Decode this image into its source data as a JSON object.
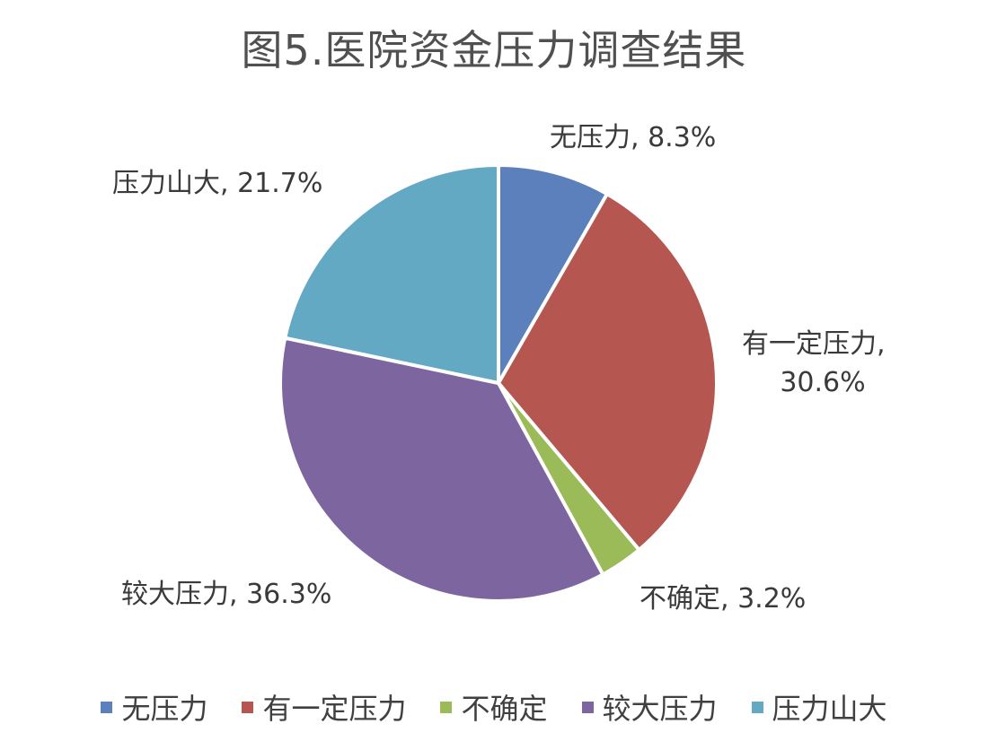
{
  "chart_data": {
    "type": "pie",
    "title": "图5.医院资金压力调查结果",
    "slices": [
      {
        "name": "无压力",
        "value": 8.3,
        "label": "无压力, 8.3%",
        "color": "#5B80BB"
      },
      {
        "name": "有一定压力",
        "value": 30.6,
        "label": "有一定压力, 30.6%",
        "color": "#B55650"
      },
      {
        "name": "不确定",
        "value": 3.2,
        "label": "不确定, 3.2%",
        "color": "#9BBB59"
      },
      {
        "name": "较大压力",
        "value": 36.3,
        "label": "较大压力, 36.3%",
        "color": "#7D66A0"
      },
      {
        "name": "压力山大",
        "value": 21.7,
        "label": "压力山大, 21.7%",
        "color": "#64A9C4"
      }
    ],
    "legend_position": "bottom"
  }
}
